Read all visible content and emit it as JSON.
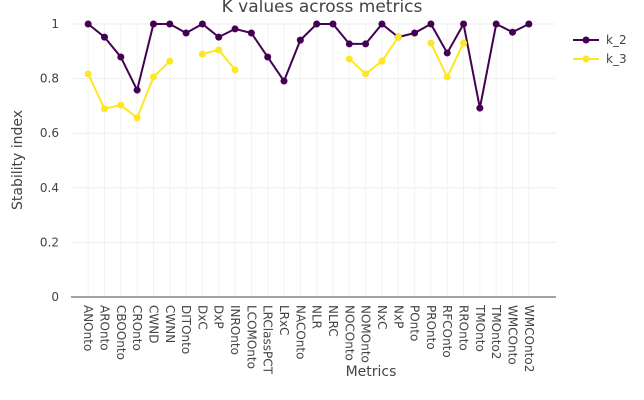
{
  "chart_data": {
    "type": "line",
    "title": "K values across metrics",
    "x_label": "Metrics",
    "y_label": "Stability index",
    "categories": [
      "ANOnto",
      "AROnto",
      "CBOOnto",
      "CROnto",
      "CWND",
      "CWNN",
      "DITOnto",
      "DxC",
      "DxP",
      "INROnto",
      "LCOMOnto",
      "LRClassPCT",
      "LRxC",
      "NACOnto",
      "NLR",
      "NLRC",
      "NOCOnto",
      "NOMOnto",
      "NxC",
      "NxP",
      "POnto",
      "PROnto",
      "RFCOnto",
      "RROnto",
      "TMOnto",
      "TMOnto2",
      "WMCOnto",
      "WMCOnto2"
    ],
    "series": [
      {
        "name": "k_2",
        "color": "#440154",
        "values": [
          1.0,
          0.952,
          0.879,
          0.758,
          1.0,
          1.0,
          0.967,
          1.0,
          0.952,
          0.982,
          0.967,
          0.879,
          0.791,
          0.941,
          1.0,
          1.0,
          0.927,
          0.927,
          1.0,
          0.952,
          0.967,
          1.0,
          0.894,
          1.0,
          0.692,
          1.0,
          0.97,
          1.0
        ]
      },
      {
        "name": "k_3",
        "color": "#fde725",
        "values": [
          0.817,
          0.689,
          0.703,
          0.656,
          0.806,
          0.864,
          null,
          0.89,
          0.905,
          0.832,
          null,
          null,
          null,
          null,
          null,
          null,
          0.872,
          0.817,
          0.864,
          0.952,
          null,
          0.93,
          0.806,
          0.93,
          null,
          null,
          null,
          null
        ]
      }
    ],
    "ylim": [
      0,
      1
    ],
    "yticks": [
      0,
      0.2,
      0.4,
      0.6,
      0.8,
      1
    ],
    "grid": true,
    "legend": "right"
  }
}
